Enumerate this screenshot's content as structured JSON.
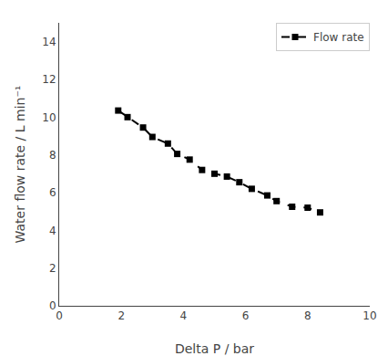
{
  "chart_data": {
    "type": "line",
    "xlabel": "Delta P / bar",
    "ylabel": "Water flow rate / L min⁻¹",
    "x": [
      1.9,
      2.2,
      2.7,
      3.0,
      3.5,
      3.8,
      4.2,
      4.6,
      5.0,
      5.4,
      5.8,
      6.2,
      6.7,
      7.0,
      7.5,
      8.0,
      8.4
    ],
    "series": [
      {
        "name": "Flow rate",
        "color": "#000000",
        "marker": "square",
        "line_style": "dashed",
        "values": [
          10.35,
          10.0,
          9.45,
          8.95,
          8.6,
          8.05,
          7.75,
          7.2,
          7.0,
          6.85,
          6.55,
          6.2,
          5.85,
          5.55,
          5.25,
          5.2,
          4.95
        ]
      }
    ],
    "xlim": [
      0,
      10
    ],
    "ylim": [
      0,
      15
    ],
    "xticks": [
      0,
      2,
      4,
      6,
      8,
      10
    ],
    "yticks": [
      0,
      2,
      4,
      6,
      8,
      10,
      12,
      14
    ],
    "grid": false,
    "legend": "upper right"
  }
}
